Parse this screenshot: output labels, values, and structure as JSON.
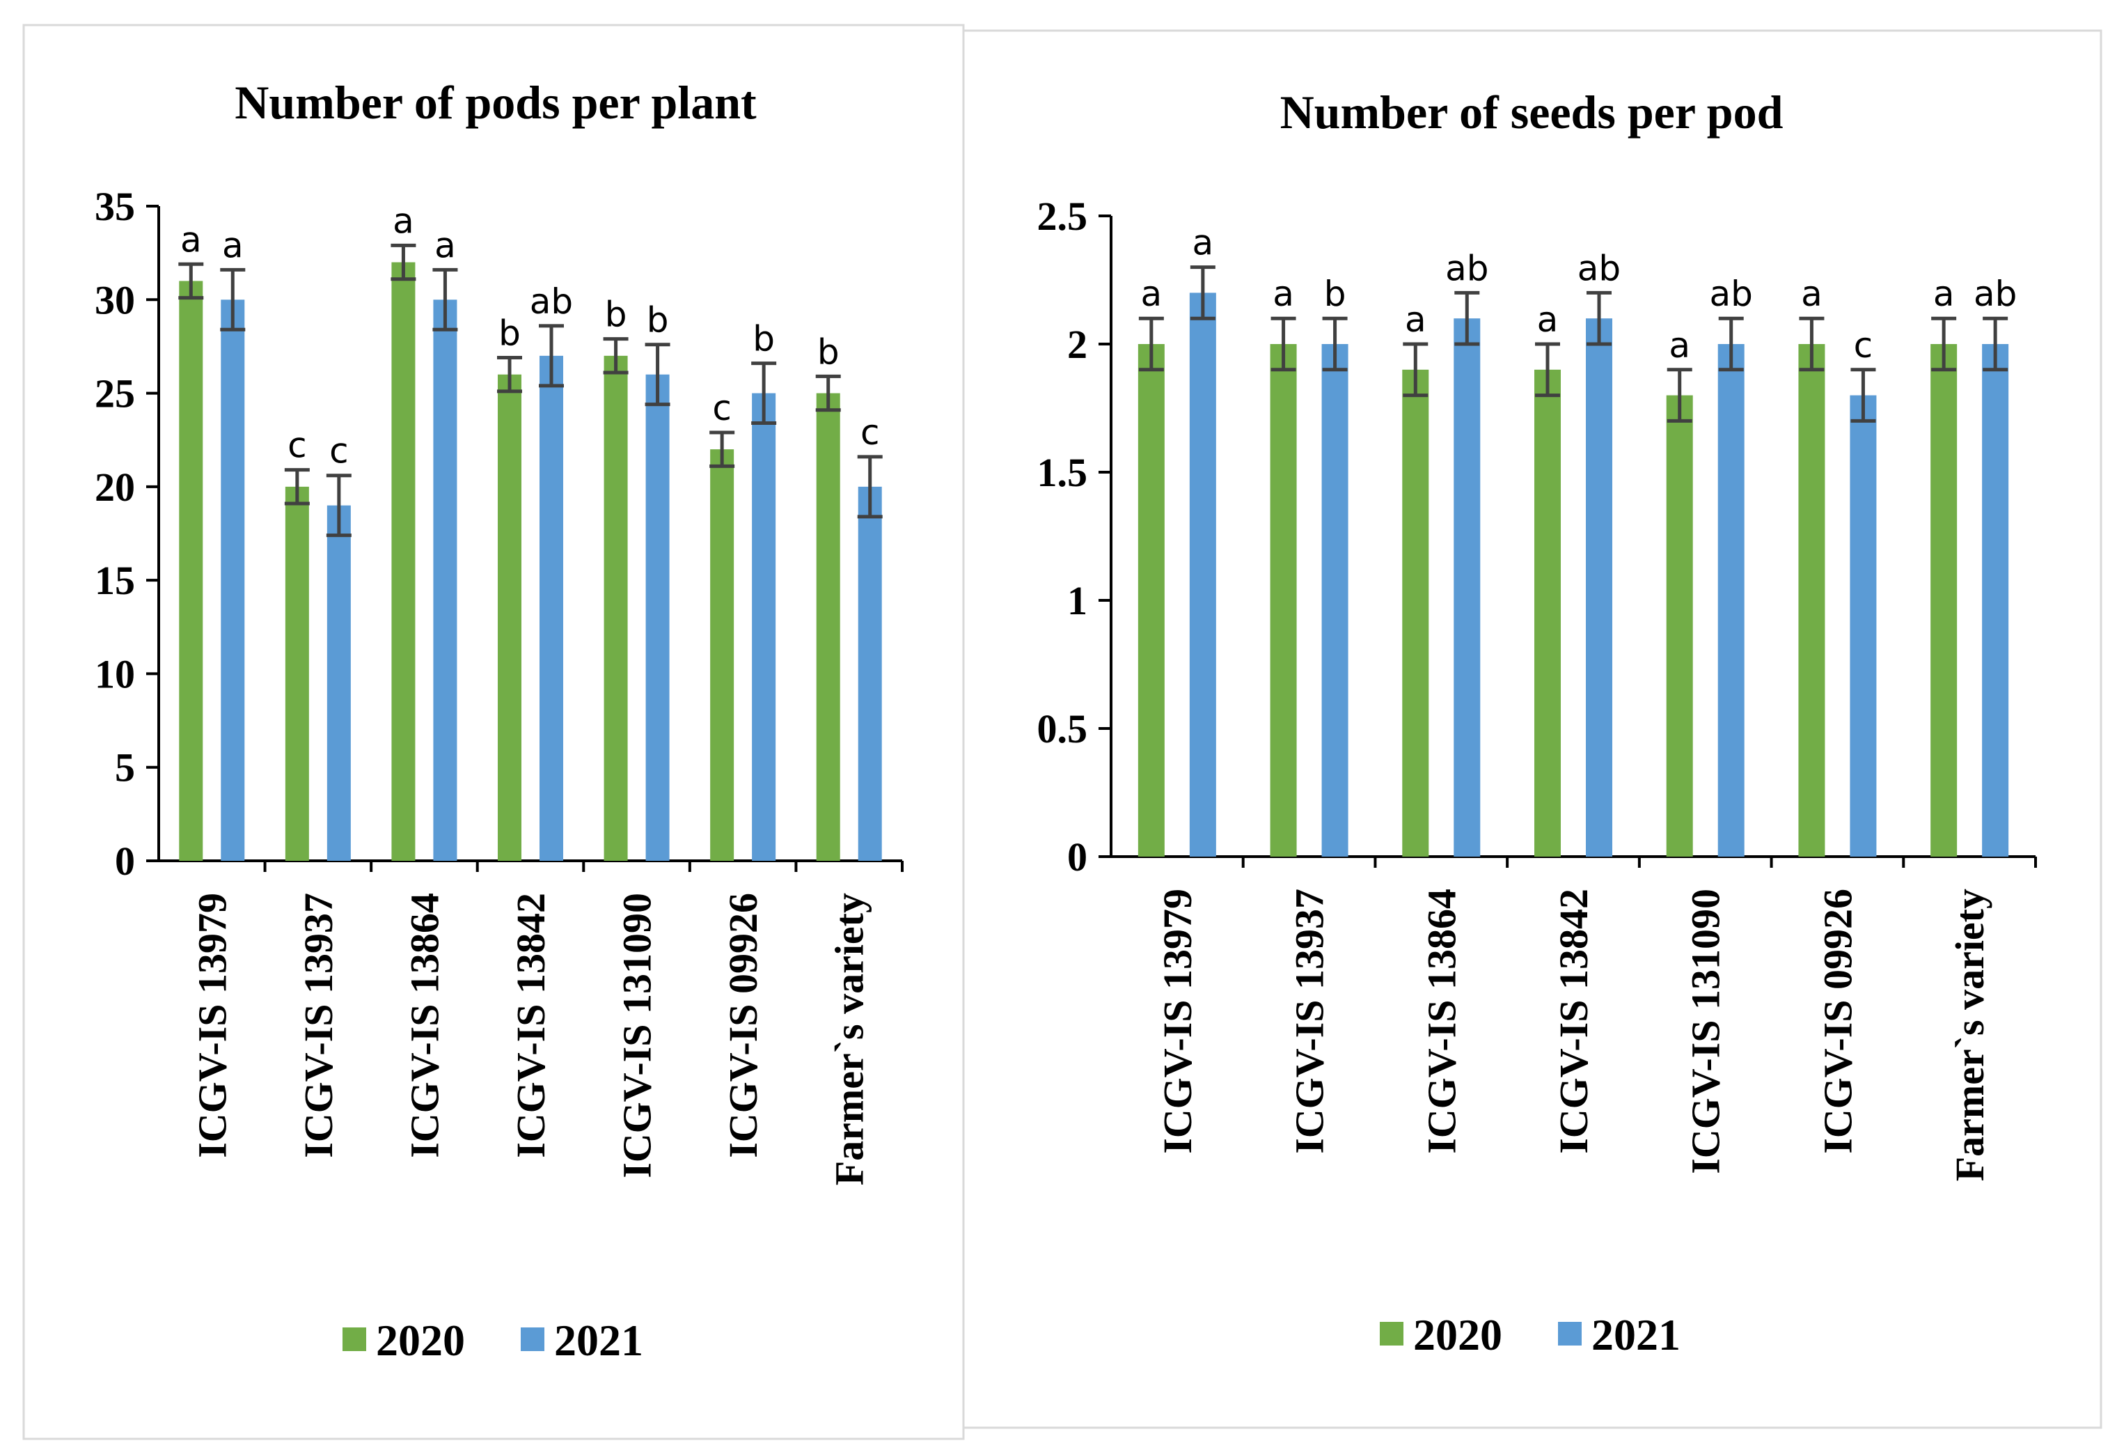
{
  "colors": {
    "s2020": "#72ad47",
    "s2021": "#5b9bd5",
    "error": "#404040",
    "axis": "#000000",
    "frame": "#d9d9d9"
  },
  "chart_data": [
    {
      "type": "bar",
      "title": "Number of pods per plant",
      "categories": [
        "ICGV-IS 13979",
        "ICGV-IS 13937",
        "ICGV-IS 13864",
        "ICGV-IS 13842",
        "ICGV-IS 131090",
        "ICGV-IS 09926",
        "Farmer`s variety"
      ],
      "ylim": [
        0,
        35
      ],
      "yticks": [
        "0",
        "5",
        "10",
        "15",
        "20",
        "25",
        "30",
        "35"
      ],
      "ytick_values": [
        0,
        5,
        10,
        15,
        20,
        25,
        30,
        35
      ],
      "series": [
        {
          "name": "2020",
          "values": [
            31,
            20,
            32,
            26,
            27,
            22,
            25
          ],
          "errors": [
            0.9,
            0.9,
            0.9,
            0.9,
            0.9,
            0.9,
            0.9
          ],
          "letters": [
            "a",
            "c",
            "a",
            "b",
            "b",
            "c",
            "b"
          ]
        },
        {
          "name": "2021",
          "values": [
            30,
            19,
            30,
            27,
            26,
            25,
            20
          ],
          "errors": [
            1.6,
            1.6,
            1.6,
            1.6,
            1.6,
            1.6,
            1.6
          ],
          "letters": [
            "a",
            "c",
            "a",
            "ab",
            "b",
            "b",
            "c"
          ]
        }
      ],
      "legend": [
        "2020",
        "2021"
      ],
      "legend_position": "bottom"
    },
    {
      "type": "bar",
      "title": "Number of seeds per pod",
      "categories": [
        "ICGV-IS 13979",
        "ICGV-IS 13937",
        "ICGV-IS 13864",
        "ICGV-IS 13842",
        "ICGV-IS 131090",
        "ICGV-IS 09926",
        "Farmer`s variety"
      ],
      "ylim": [
        0,
        2.5
      ],
      "yticks": [
        "0",
        "0.5",
        "1",
        "1.5",
        "2",
        "2.5"
      ],
      "ytick_values": [
        0,
        0.5,
        1,
        1.5,
        2,
        2.5
      ],
      "series": [
        {
          "name": "2020",
          "values": [
            2.0,
            2.0,
            1.9,
            1.9,
            1.8,
            2.0,
            2.0
          ],
          "errors": [
            0.1,
            0.1,
            0.1,
            0.1,
            0.1,
            0.1,
            0.1
          ],
          "letters": [
            "a",
            "a",
            "a",
            "a",
            "a",
            "a",
            "a"
          ]
        },
        {
          "name": "2021",
          "values": [
            2.2,
            2.0,
            2.1,
            2.1,
            2.0,
            1.8,
            2.0
          ],
          "errors": [
            0.1,
            0.1,
            0.1,
            0.1,
            0.1,
            0.1,
            0.1
          ],
          "letters": [
            "a",
            "b",
            "ab",
            "ab",
            "ab",
            "c",
            "ab"
          ]
        }
      ],
      "legend": [
        "2020",
        "2021"
      ],
      "legend_position": "bottom"
    }
  ]
}
